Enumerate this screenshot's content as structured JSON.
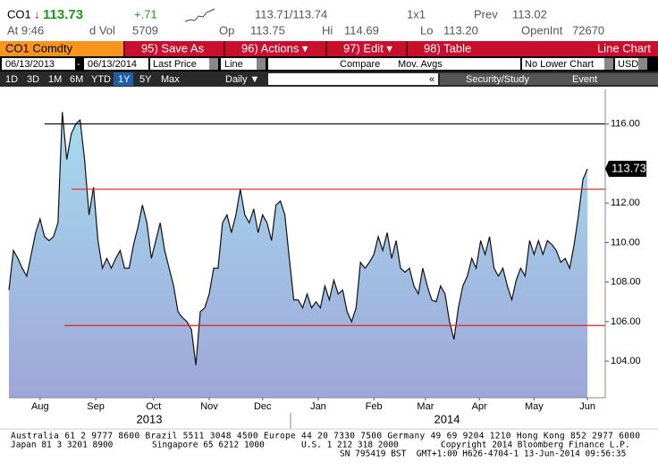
{
  "header": {
    "ticker": "CO1",
    "arrow": "↓",
    "last": "113.73",
    "change": "+.71",
    "bid_ask": "113.71/113.74",
    "size": "1x1",
    "prev_label": "Prev",
    "prev": "113.02",
    "time": "At 9:46",
    "vol_label": "d Vol",
    "vol": "5709",
    "open_label": "Op",
    "open": "113.75",
    "hi_label": "Hi",
    "hi": "114.69",
    "lo_label": "Lo",
    "lo": "113.20",
    "oi_label": "OpenInt",
    "oi": "72670"
  },
  "menu": {
    "security": "CO1 Comdty",
    "items": [
      "95) Save As",
      "96) Actions ▾",
      "97) Edit ▾",
      "98) Table"
    ],
    "chart_type": "Line Chart"
  },
  "controls": {
    "start": "06/13/2013",
    "dash": "-",
    "end": "06/13/2014",
    "field": "Last Price",
    "style": "Line",
    "compare": "Compare",
    "mov": "Mov. Avgs",
    "lower": "No Lower Chart",
    "currency": "USD"
  },
  "periods": [
    "1D",
    "3D",
    "1M",
    "6M",
    "YTD",
    "1Y",
    "5Y",
    "Max"
  ],
  "frequency": "Daily ▼",
  "collapse": "«",
  "study": "Security/Study",
  "event": "Event",
  "chart_data": {
    "type": "area-line",
    "color": "#111111",
    "fill_top": "#a6dcef",
    "fill_bottom": "#9ea6d8",
    "values": [
      107.6,
      109.6,
      109.2,
      108.7,
      108.3,
      109.4,
      110.5,
      111.2,
      110.3,
      110.1,
      110.3,
      111.0,
      116.6,
      114.2,
      115.5,
      116.0,
      116.2,
      114.2,
      111.4,
      112.8,
      110.1,
      108.7,
      109.2,
      108.7,
      109.2,
      109.6,
      108.7,
      108.7,
      109.9,
      110.8,
      111.9,
      111.0,
      109.2,
      110.1,
      111.0,
      109.6,
      108.7,
      107.8,
      106.5,
      106.2,
      106.0,
      105.6,
      103.8,
      106.5,
      106.7,
      107.4,
      108.7,
      108.7,
      111.0,
      111.4,
      110.5,
      111.4,
      112.7,
      111.4,
      111.0,
      111.7,
      110.5,
      111.4,
      111.0,
      110.1,
      111.9,
      112.1,
      111.4,
      109.2,
      107.1,
      107.1,
      106.7,
      107.4,
      106.7,
      107.0,
      106.7,
      107.8,
      107.1,
      108.1,
      107.4,
      107.6,
      106.5,
      106.0,
      106.7,
      109.0,
      108.7,
      109.0,
      109.4,
      110.3,
      109.6,
      110.5,
      109.2,
      110.1,
      108.7,
      108.5,
      108.7,
      107.8,
      107.4,
      108.7,
      107.8,
      107.1,
      107.0,
      107.8,
      107.4,
      106.0,
      105.1,
      106.7,
      107.8,
      108.3,
      109.2,
      108.7,
      110.1,
      109.4,
      110.3,
      108.7,
      108.3,
      108.7,
      107.8,
      107.1,
      108.1,
      108.7,
      108.3,
      110.1,
      109.4,
      110.1,
      109.4,
      110.1,
      109.9,
      109.6,
      109.0,
      109.2,
      108.7,
      109.9,
      111.4,
      113.2,
      113.73
    ],
    "xlim": [
      0,
      134
    ],
    "ylim": [
      102.15,
      117.75
    ],
    "xticks": [
      {
        "value": 7,
        "label": "Aug"
      },
      {
        "value": 19.5,
        "label": "Sep"
      },
      {
        "value": 32.5,
        "label": "Oct"
      },
      {
        "value": 45,
        "label": "Nov"
      },
      {
        "value": 57,
        "label": "Dec"
      },
      {
        "value": 69.5,
        "label": "Jan"
      },
      {
        "value": 82,
        "label": "Feb"
      },
      {
        "value": 93.6,
        "label": "Mar"
      },
      {
        "value": 105.7,
        "label": "Apr"
      },
      {
        "value": 118,
        "label": "May"
      },
      {
        "value": 130,
        "label": "Jun"
      }
    ],
    "yticks": [
      {
        "value": 104,
        "label": "104.00"
      },
      {
        "value": 106,
        "label": "106.00"
      },
      {
        "value": 108,
        "label": "108.00"
      },
      {
        "value": 110,
        "label": "110.00"
      },
      {
        "value": 112,
        "label": "112.00"
      },
      {
        "value": 116,
        "label": "116.00"
      }
    ],
    "years": [
      "2013",
      "2014"
    ],
    "ref_lines": [
      {
        "value": 116,
        "color": "#000000"
      },
      {
        "value": 112.7,
        "color": "#e02020"
      },
      {
        "value": 105.8,
        "color": "#e02020"
      }
    ]
  },
  "footer": {
    "line1": "Australia 61 2 9777 8600 Brazil 5511 3048 4500 Europe 44 20 7330 7500 Germany 49 69 9204 1210 Hong Kong 852 2977 6000",
    "line2": [
      "Japan 81 3 3201 8900",
      "Singapore 65 6212 1000",
      "U.S. 1 212 318 2000",
      "Copyright 2014 Bloomberg Finance L.P."
    ],
    "line3": "SN 795419 BST  GMT+1:00 H626-4704-1 13-Jun-2014 09:56:35"
  }
}
